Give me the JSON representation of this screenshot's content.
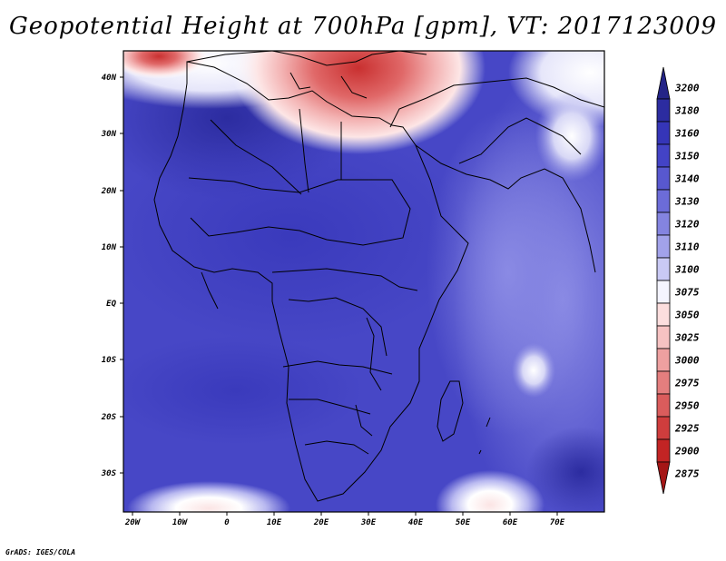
{
  "map": {
    "title": "Geopotential Height at 700hPa [gpm], VT: 2017123009",
    "lon_ticks": [
      "20W",
      "10W",
      "0",
      "10E",
      "20E",
      "30E",
      "40E",
      "50E",
      "60E",
      "70E"
    ],
    "lat_ticks": [
      "40N",
      "30N",
      "20N",
      "10N",
      "EQ",
      "10S",
      "20S",
      "30S"
    ],
    "colorbar": {
      "levels": [
        "3200",
        "3180",
        "3160",
        "3150",
        "3140",
        "3130",
        "3120",
        "3110",
        "3100",
        "3075",
        "3050",
        "3025",
        "3000",
        "2975",
        "2950",
        "2925",
        "2900",
        "2875"
      ],
      "colors": [
        "#242487",
        "#2c2ca0",
        "#3535b8",
        "#4343c6",
        "#5858cf",
        "#6c6cd8",
        "#8484e0",
        "#a2a2ea",
        "#c9c9f4",
        "#f4f4ff",
        "#fcdede",
        "#f6c2c2",
        "#eea0a0",
        "#e47e7e",
        "#da5c5c",
        "#cf3d3d",
        "#c22424",
        "#a51616"
      ]
    },
    "credit": "GrADS: IGES/COLA"
  }
}
